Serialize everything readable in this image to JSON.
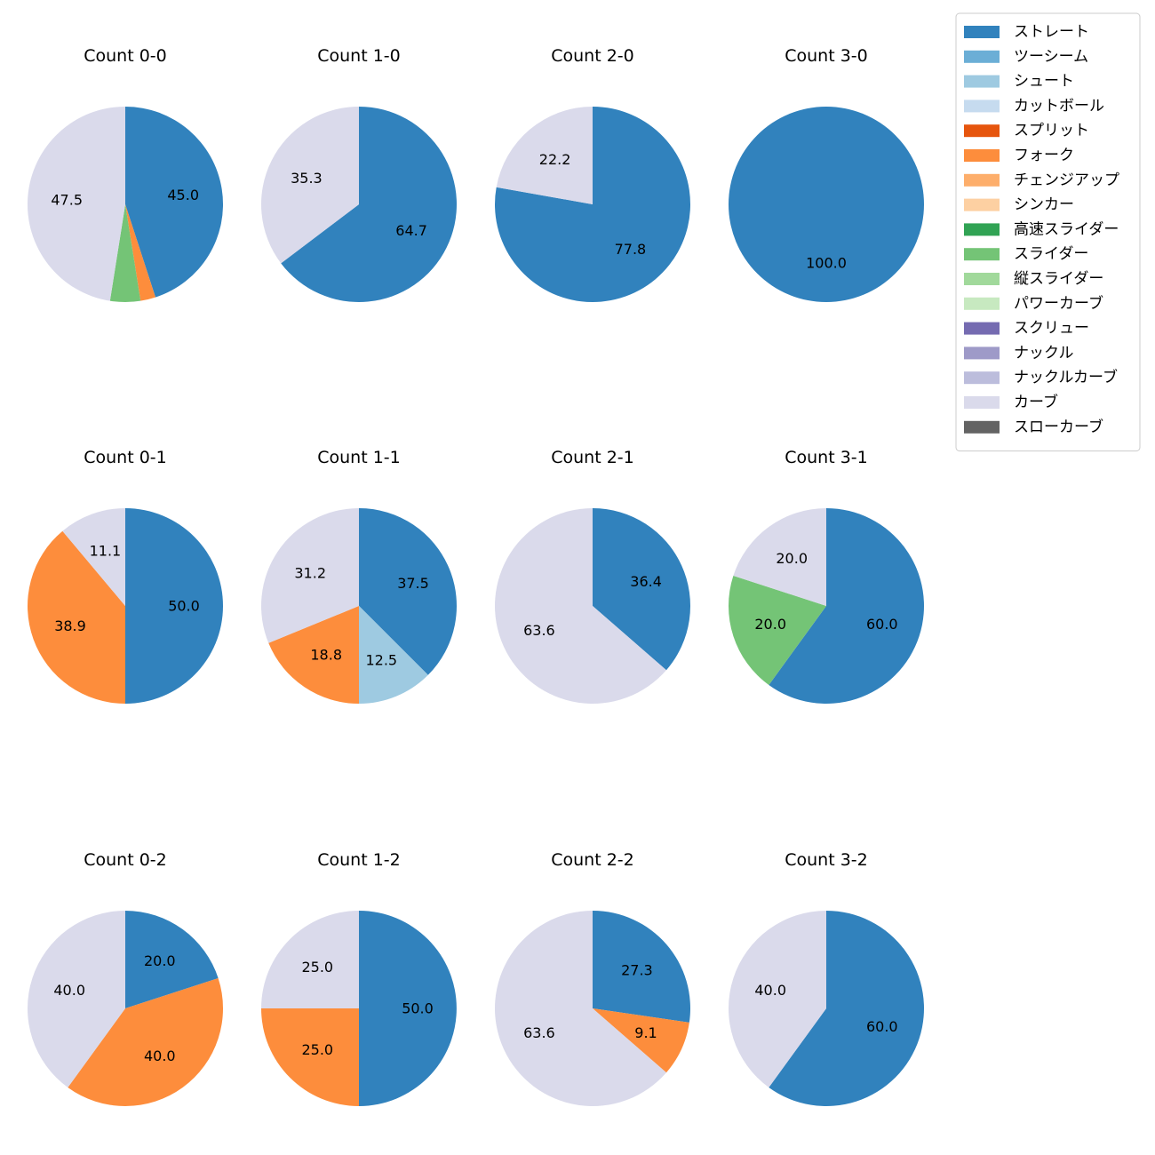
{
  "legend": [
    {
      "label": "ストレート",
      "color": "#3182bd"
    },
    {
      "label": "ツーシーム",
      "color": "#6baed6"
    },
    {
      "label": "シュート",
      "color": "#9ecae1"
    },
    {
      "label": "カットボール",
      "color": "#c6dbef"
    },
    {
      "label": "スプリット",
      "color": "#e6550d"
    },
    {
      "label": "フォーク",
      "color": "#fd8d3c"
    },
    {
      "label": "チェンジアップ",
      "color": "#fdae6b"
    },
    {
      "label": "シンカー",
      "color": "#fdd0a2"
    },
    {
      "label": "高速スライダー",
      "color": "#31a354"
    },
    {
      "label": "スライダー",
      "color": "#74c476"
    },
    {
      "label": "縦スライダー",
      "color": "#a1d99b"
    },
    {
      "label": "パワーカーブ",
      "color": "#c7e9c0"
    },
    {
      "label": "スクリュー",
      "color": "#756bb1"
    },
    {
      "label": "ナックル",
      "color": "#9e9ac8"
    },
    {
      "label": "ナックルカーブ",
      "color": "#bcbddc"
    },
    {
      "label": "カーブ",
      "color": "#dadaeb"
    },
    {
      "label": "スローカーブ",
      "color": "#636363"
    }
  ],
  "chart_data": [
    {
      "type": "pie",
      "title": "Count 0-0",
      "slices": [
        {
          "name": "ストレート",
          "value": 45.0,
          "label": "45.0"
        },
        {
          "name": "フォーク",
          "value": 2.5,
          "label": ""
        },
        {
          "name": "スライダー",
          "value": 5.0,
          "label": ""
        },
        {
          "name": "カーブ",
          "value": 47.5,
          "label": "47.5"
        }
      ]
    },
    {
      "type": "pie",
      "title": "Count 1-0",
      "slices": [
        {
          "name": "ストレート",
          "value": 64.7,
          "label": "64.7"
        },
        {
          "name": "カーブ",
          "value": 35.3,
          "label": "35.3"
        }
      ]
    },
    {
      "type": "pie",
      "title": "Count 2-0",
      "slices": [
        {
          "name": "ストレート",
          "value": 77.8,
          "label": "77.8"
        },
        {
          "name": "カーブ",
          "value": 22.2,
          "label": "22.2"
        }
      ]
    },
    {
      "type": "pie",
      "title": "Count 3-0",
      "slices": [
        {
          "name": "ストレート",
          "value": 100.0,
          "label": "100.0"
        }
      ]
    },
    {
      "type": "pie",
      "title": "Count 0-1",
      "slices": [
        {
          "name": "ストレート",
          "value": 50.0,
          "label": "50.0"
        },
        {
          "name": "フォーク",
          "value": 38.9,
          "label": "38.9"
        },
        {
          "name": "カーブ",
          "value": 11.1,
          "label": "11.1"
        }
      ]
    },
    {
      "type": "pie",
      "title": "Count 1-1",
      "slices": [
        {
          "name": "ストレート",
          "value": 37.5,
          "label": "37.5"
        },
        {
          "name": "シュート",
          "value": 12.5,
          "label": "12.5"
        },
        {
          "name": "フォーク",
          "value": 18.8,
          "label": "18.8"
        },
        {
          "name": "カーブ",
          "value": 31.2,
          "label": "31.2"
        }
      ]
    },
    {
      "type": "pie",
      "title": "Count 2-1",
      "slices": [
        {
          "name": "ストレート",
          "value": 36.4,
          "label": "36.4"
        },
        {
          "name": "カーブ",
          "value": 63.6,
          "label": "63.6"
        }
      ]
    },
    {
      "type": "pie",
      "title": "Count 3-1",
      "slices": [
        {
          "name": "ストレート",
          "value": 60.0,
          "label": "60.0"
        },
        {
          "name": "スライダー",
          "value": 20.0,
          "label": "20.0"
        },
        {
          "name": "カーブ",
          "value": 20.0,
          "label": "20.0"
        }
      ]
    },
    {
      "type": "pie",
      "title": "Count 0-2",
      "slices": [
        {
          "name": "ストレート",
          "value": 20.0,
          "label": "20.0"
        },
        {
          "name": "フォーク",
          "value": 40.0,
          "label": "40.0"
        },
        {
          "name": "カーブ",
          "value": 40.0,
          "label": "40.0"
        }
      ]
    },
    {
      "type": "pie",
      "title": "Count 1-2",
      "slices": [
        {
          "name": "ストレート",
          "value": 50.0,
          "label": "50.0"
        },
        {
          "name": "フォーク",
          "value": 25.0,
          "label": "25.0"
        },
        {
          "name": "カーブ",
          "value": 25.0,
          "label": "25.0"
        }
      ]
    },
    {
      "type": "pie",
      "title": "Count 2-2",
      "slices": [
        {
          "name": "ストレート",
          "value": 27.3,
          "label": "27.3"
        },
        {
          "name": "フォーク",
          "value": 9.1,
          "label": "9.1"
        },
        {
          "name": "カーブ",
          "value": 63.6,
          "label": "63.6"
        }
      ]
    },
    {
      "type": "pie",
      "title": "Count 3-2",
      "slices": [
        {
          "name": "ストレート",
          "value": 60.0,
          "label": "60.0"
        },
        {
          "name": "カーブ",
          "value": 40.0,
          "label": "40.0"
        }
      ]
    }
  ]
}
